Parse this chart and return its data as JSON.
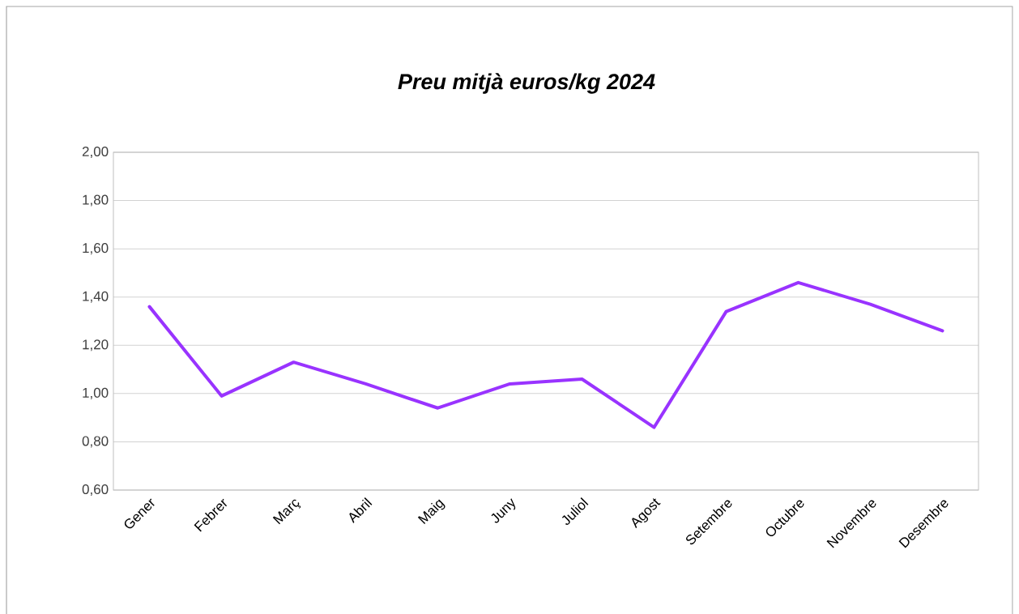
{
  "chart_data": {
    "type": "line",
    "title": "Preu mitjà euros/kg 2024",
    "categories": [
      "Gener",
      "Febrer",
      "Març",
      "Abril",
      "Maig",
      "Juny",
      "Juliol",
      "Agost",
      "Setembre",
      "Octubre",
      "Novembre",
      "Desembre"
    ],
    "values": [
      1.36,
      0.99,
      1.13,
      1.04,
      0.94,
      1.04,
      1.06,
      0.86,
      1.34,
      1.46,
      1.37,
      1.26
    ],
    "color": "#9933ff",
    "ylim": [
      0.6,
      2.0
    ],
    "yticks": [
      {
        "value": 0.6,
        "label": "0,60"
      },
      {
        "value": 0.8,
        "label": "0,80"
      },
      {
        "value": 1.0,
        "label": "1,00"
      },
      {
        "value": 1.2,
        "label": "1,20"
      },
      {
        "value": 1.4,
        "label": "1,40"
      },
      {
        "value": 1.6,
        "label": "1,60"
      },
      {
        "value": 1.8,
        "label": "1,80"
      },
      {
        "value": 2.0,
        "label": "2,00"
      }
    ],
    "grid": "y",
    "marker": "none",
    "line_style": "solid"
  }
}
